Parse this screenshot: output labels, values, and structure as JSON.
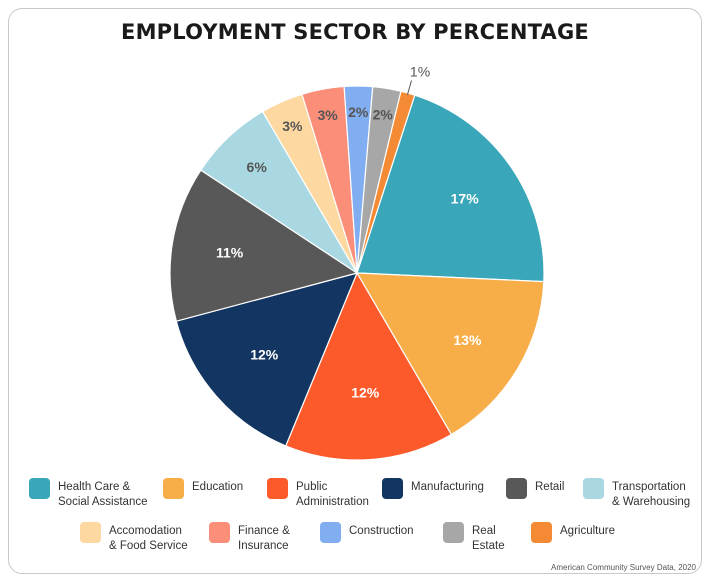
{
  "chart_data": {
    "type": "pie",
    "title": "EMPLOYMENT SECTOR BY PERCENTAGE",
    "source": "American Community Survey Data, 2020",
    "slices": [
      {
        "label": "Health Care &\nSocial Assistance",
        "value": 17,
        "display": "17%",
        "color": "#3aa6b9"
      },
      {
        "label": "Education",
        "value": 13,
        "display": "13%",
        "color": "#f8ae48"
      },
      {
        "label": "Public\nAdministration",
        "value": 12,
        "display": "12%",
        "color": "#fd5a2c"
      },
      {
        "label": "Manufacturing",
        "value": 12,
        "display": "12%",
        "color": "#133561"
      },
      {
        "label": "Retail",
        "value": 11,
        "display": "11%",
        "color": "#585858"
      },
      {
        "label": "Transportation\n& Warehousing",
        "value": 6,
        "display": "6%",
        "color": "#a9d8e2"
      },
      {
        "label": "Accomodation\n& Food Service",
        "value": 3,
        "display": "3%",
        "color": "#fdd8a0"
      },
      {
        "label": "Finance &\nInsurance",
        "value": 3,
        "display": "3%",
        "color": "#fa8e78"
      },
      {
        "label": "Construction",
        "value": 2,
        "display": "2%",
        "color": "#80aef0"
      },
      {
        "label": "Real\nEstate",
        "value": 2,
        "display": "2%",
        "color": "#a7a7a7"
      },
      {
        "label": "Agriculture",
        "value": 1,
        "display": "1%",
        "color": "#f58a34"
      }
    ]
  }
}
